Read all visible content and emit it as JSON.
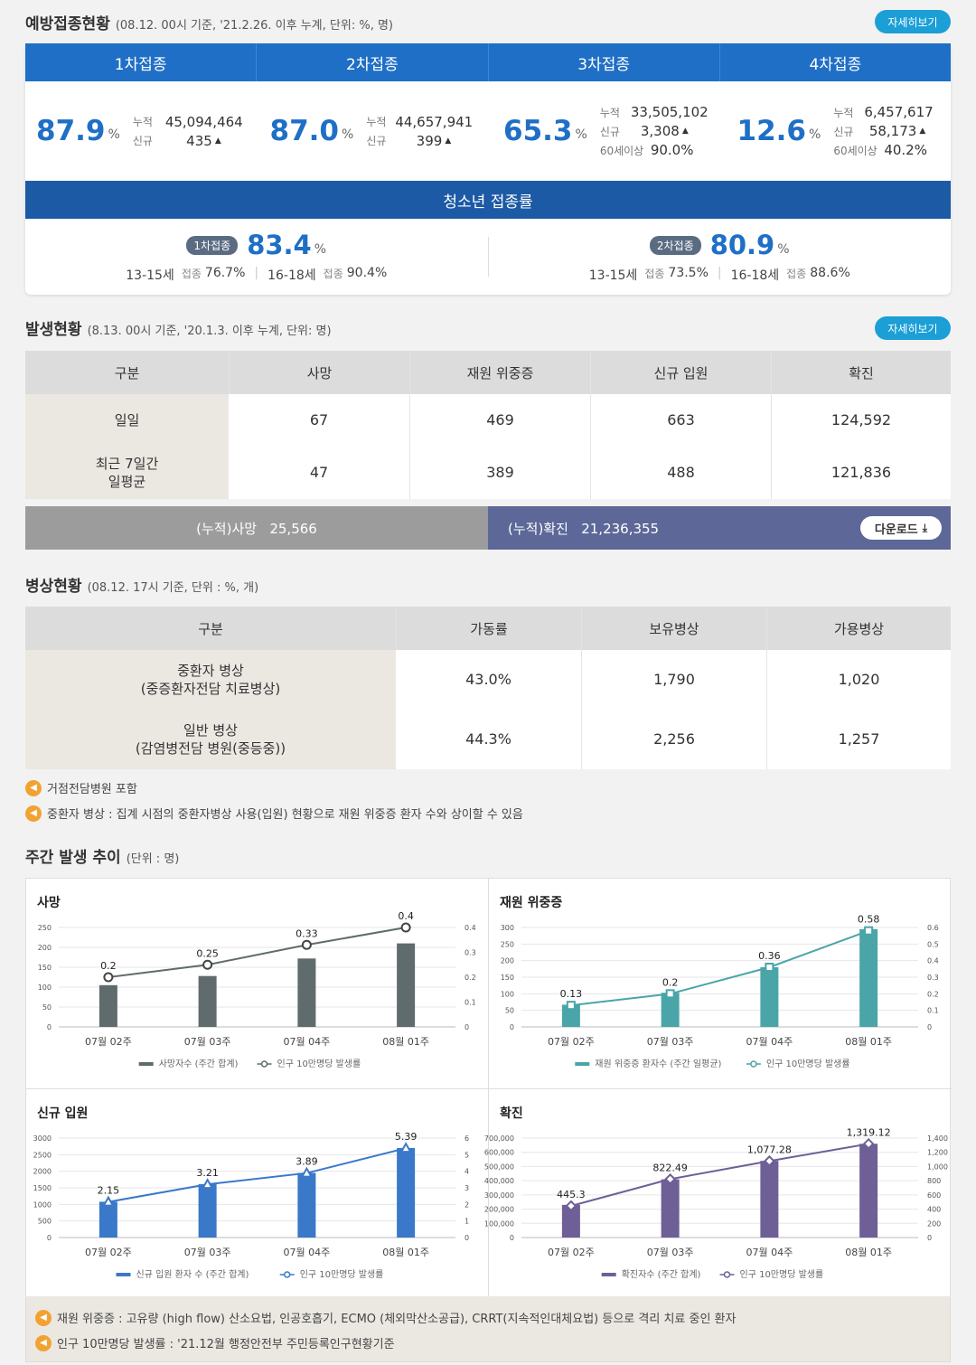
{
  "vaccination": {
    "title": "예방접종현황",
    "subtitle": "(08.12. 00시 기준, '21.2.26. 이후 누계, 단위: %, 명)",
    "more_label": "자세히보기",
    "tabs": [
      "1차접종",
      "2차접종",
      "3차접종",
      "4차접종"
    ],
    "doses": [
      {
        "rate": "87.9",
        "unit": "%",
        "cum_label": "누적",
        "cum": "45,094,464",
        "new_label": "신규",
        "new": "435"
      },
      {
        "rate": "87.0",
        "unit": "%",
        "cum_label": "누적",
        "cum": "44,657,941",
        "new_label": "신규",
        "new": "399"
      },
      {
        "rate": "65.3",
        "unit": "%",
        "cum_label": "누적",
        "cum": "33,505,102",
        "new_label": "신규",
        "new": "3,308",
        "over60_label": "60세이상",
        "over60": "90.0%"
      },
      {
        "rate": "12.6",
        "unit": "%",
        "cum_label": "누적",
        "cum": "6,457,617",
        "new_label": "신규",
        "new": "58,173",
        "over60_label": "60세이상",
        "over60": "40.2%"
      }
    ],
    "teen": {
      "title": "청소년 접종률",
      "items": [
        {
          "pill": "1차접종",
          "rate": "83.4",
          "unit": "%",
          "a_label": "13-15세",
          "a_sub": "접종",
          "a_val": "76.7%",
          "b_label": "16-18세",
          "b_sub": "접종",
          "b_val": "90.4%"
        },
        {
          "pill": "2차접종",
          "rate": "80.9",
          "unit": "%",
          "a_label": "13-15세",
          "a_sub": "접종",
          "a_val": "73.5%",
          "b_label": "16-18세",
          "b_sub": "접종",
          "b_val": "88.6%"
        }
      ]
    }
  },
  "occurrence": {
    "title": "발생현황",
    "subtitle": "(8.13. 00시 기준, '20.1.3. 이후 누계, 단위: 명)",
    "more_label": "자세히보기",
    "headers": [
      "구분",
      "사망",
      "재원 위중증",
      "신규 입원",
      "확진"
    ],
    "rows": [
      {
        "label": "일일",
        "values": [
          "67",
          "469",
          "663",
          "124,592"
        ]
      },
      {
        "label": "최근 7일간\n일평균",
        "values": [
          "47",
          "389",
          "488",
          "121,836"
        ]
      }
    ],
    "cum_death": "(누적)사망   25,566",
    "cum_confirmed": "(누적)확진   21,236,355",
    "download_label": "다운로드"
  },
  "beds": {
    "title": "병상현황",
    "subtitle": "(08.12. 17시 기준, 단위 : %, 개)",
    "headers": [
      "구분",
      "가동률",
      "보유병상",
      "가용병상"
    ],
    "rows": [
      {
        "label": "중환자 병상\n(중증환자전담 치료병상)",
        "values": [
          "43.0%",
          "1,790",
          "1,020"
        ]
      },
      {
        "label": "일반 병상\n(감염병전담 병원(중등중))",
        "values": [
          "44.3%",
          "2,256",
          "1,257"
        ]
      }
    ],
    "notes": [
      "거점전담병원 포함",
      "중환자 병상 : 집계 시점의 중환자병상 사용(입원) 현황으로 재원 위중증 환자 수와 상이할 수 있음"
    ]
  },
  "weekly": {
    "title": "주간 발생 추이",
    "subtitle": "(단위 : 명)",
    "footnotes": [
      "재원 위중증 : 고유량 (high flow) 산소요법, 인공호흡기, ECMO (체외막산소공급), CRRT(지속적인대체요법) 등으로 격리 치료 중인 환자",
      "인구 10만명당 발생률 : '21.12월 행정안전부 주민등록인구현황기준"
    ]
  },
  "chart_data": [
    {
      "type": "bar",
      "title": "사망",
      "categories": [
        "07월 02주",
        "07월 03주",
        "07월 04주",
        "08월 01주"
      ],
      "series": [
        {
          "name": "사망자수 (주간 합계)",
          "values": [
            105,
            128,
            172,
            210
          ],
          "color": "#5f6b6d"
        },
        {
          "name": "인구 10만명당 발생률",
          "type": "line",
          "values": [
            0.2,
            0.25,
            0.33,
            0.4
          ],
          "labels": [
            "0.2",
            "0.25",
            "0.33",
            "0.4"
          ],
          "color": "#5f6b6d"
        }
      ],
      "ylim": [
        0,
        250
      ],
      "yticks": [
        0,
        50,
        100,
        150,
        200,
        250
      ],
      "y2lim": [
        0,
        0.4
      ],
      "y2ticks": [
        "0",
        "0.1",
        "0.2",
        "0.3",
        "0.4"
      ],
      "marker": "circle"
    },
    {
      "type": "bar",
      "title": "재원 위중증",
      "categories": [
        "07월 02주",
        "07월 03주",
        "07월 04주",
        "08월 01주"
      ],
      "series": [
        {
          "name": "재원 위중증 환자수 (주간 일평균)",
          "values": [
            67,
            103,
            180,
            295
          ],
          "color": "#4aa5a8"
        },
        {
          "name": "인구 10만명당 발생률",
          "type": "line",
          "values": [
            0.13,
            0.2,
            0.36,
            0.58
          ],
          "labels": [
            "0.13",
            "0.2",
            "0.36",
            "0.58"
          ],
          "color": "#4aa5a8"
        }
      ],
      "ylim": [
        0,
        300
      ],
      "yticks": [
        0,
        50,
        100,
        150,
        200,
        250,
        300
      ],
      "y2lim": [
        0,
        0.6
      ],
      "y2ticks": [
        "0",
        "0.1",
        "0.2",
        "0.3",
        "0.4",
        "0.5",
        "0.6"
      ],
      "marker": "square"
    },
    {
      "type": "bar",
      "title": "신규 입원",
      "categories": [
        "07월 02주",
        "07월 03주",
        "07월 04주",
        "08월 01주"
      ],
      "series": [
        {
          "name": "신규 입원 환자 수 (주간 합계)",
          "values": [
            1080,
            1610,
            1950,
            2700
          ],
          "color": "#3a78c9"
        },
        {
          "name": "인구 10만명당 발생률",
          "type": "line",
          "values": [
            2.15,
            3.21,
            3.89,
            5.39
          ],
          "labels": [
            "2.15",
            "3.21",
            "3.89",
            "5.39"
          ],
          "color": "#3a78c9"
        }
      ],
      "ylim": [
        0,
        3000
      ],
      "yticks": [
        0,
        500,
        1000,
        1500,
        2000,
        2500,
        3000
      ],
      "y2lim": [
        0,
        6
      ],
      "y2ticks": [
        "0",
        "1",
        "2",
        "3",
        "4",
        "5",
        "6"
      ],
      "marker": "triangle"
    },
    {
      "type": "bar",
      "title": "확진",
      "categories": [
        "07월 02주",
        "07월 03주",
        "07월 04주",
        "08월 01주"
      ],
      "series": [
        {
          "name": "확진자수 (주간 합계)",
          "values": [
            230000,
            410000,
            540000,
            660000
          ],
          "color": "#6e5f97"
        },
        {
          "name": "인구 10만명당 발생률",
          "type": "line",
          "values": [
            445.3,
            822.49,
            1077.28,
            1319.12
          ],
          "labels": [
            "445.3",
            "822.49",
            "1,077.28",
            "1,319.12"
          ],
          "color": "#6e5f97"
        }
      ],
      "ylim": [
        0,
        700000
      ],
      "yticks": [
        "0",
        "100,000",
        "200,000",
        "300,000",
        "400,000",
        "500,000",
        "600,000",
        "700,000"
      ],
      "y2lim": [
        0,
        1400
      ],
      "y2ticks": [
        "0",
        "200",
        "400",
        "600",
        "800",
        "1,000",
        "1,200",
        "1,400"
      ],
      "marker": "diamond"
    }
  ]
}
